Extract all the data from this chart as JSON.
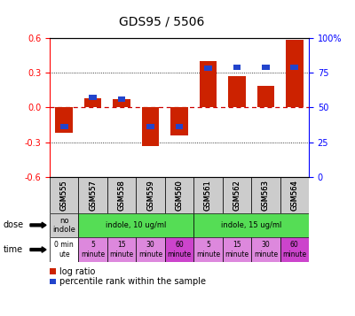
{
  "title": "GDS95 / 5506",
  "samples": [
    "GSM555",
    "GSM557",
    "GSM558",
    "GSM559",
    "GSM560",
    "GSM561",
    "GSM562",
    "GSM563",
    "GSM564"
  ],
  "log_ratio": [
    -0.22,
    0.08,
    0.07,
    -0.33,
    -0.24,
    0.4,
    0.27,
    0.19,
    0.58
  ],
  "percentile": [
    36,
    57,
    56,
    36,
    36,
    78,
    79,
    79,
    79
  ],
  "ylim": [
    -0.6,
    0.6
  ],
  "yticks_left": [
    -0.6,
    -0.3,
    0.0,
    0.3,
    0.6
  ],
  "yticks_right": [
    0,
    25,
    50,
    75,
    100
  ],
  "dose_labels": [
    {
      "text": "no\nindole",
      "start": 0,
      "end": 1,
      "color": "#cccccc"
    },
    {
      "text": "indole, 10 ug/ml",
      "start": 1,
      "end": 5,
      "color": "#55dd55"
    },
    {
      "text": "indole, 15 ug/ml",
      "start": 5,
      "end": 9,
      "color": "#55dd55"
    }
  ],
  "time_labels": [
    {
      "text": "0 min\nute",
      "start": 0,
      "end": 1,
      "color": "#ffffff"
    },
    {
      "text": "5\nminute",
      "start": 1,
      "end": 2,
      "color": "#dd88dd"
    },
    {
      "text": "15\nminute",
      "start": 2,
      "end": 3,
      "color": "#dd88dd"
    },
    {
      "text": "30\nminute",
      "start": 3,
      "end": 4,
      "color": "#dd88dd"
    },
    {
      "text": "60\nminute",
      "start": 4,
      "end": 5,
      "color": "#cc44cc"
    },
    {
      "text": "5\nminute",
      "start": 5,
      "end": 6,
      "color": "#dd88dd"
    },
    {
      "text": "15\nminute",
      "start": 6,
      "end": 7,
      "color": "#dd88dd"
    },
    {
      "text": "30\nminute",
      "start": 7,
      "end": 8,
      "color": "#dd88dd"
    },
    {
      "text": "60\nminute",
      "start": 8,
      "end": 9,
      "color": "#cc44cc"
    }
  ],
  "bar_color_red": "#cc2200",
  "bar_color_blue": "#2244cc",
  "grid_color": "#000000",
  "zero_line_color": "#cc0000",
  "background_color": "#ffffff",
  "gsm_bg_color": "#cccccc"
}
